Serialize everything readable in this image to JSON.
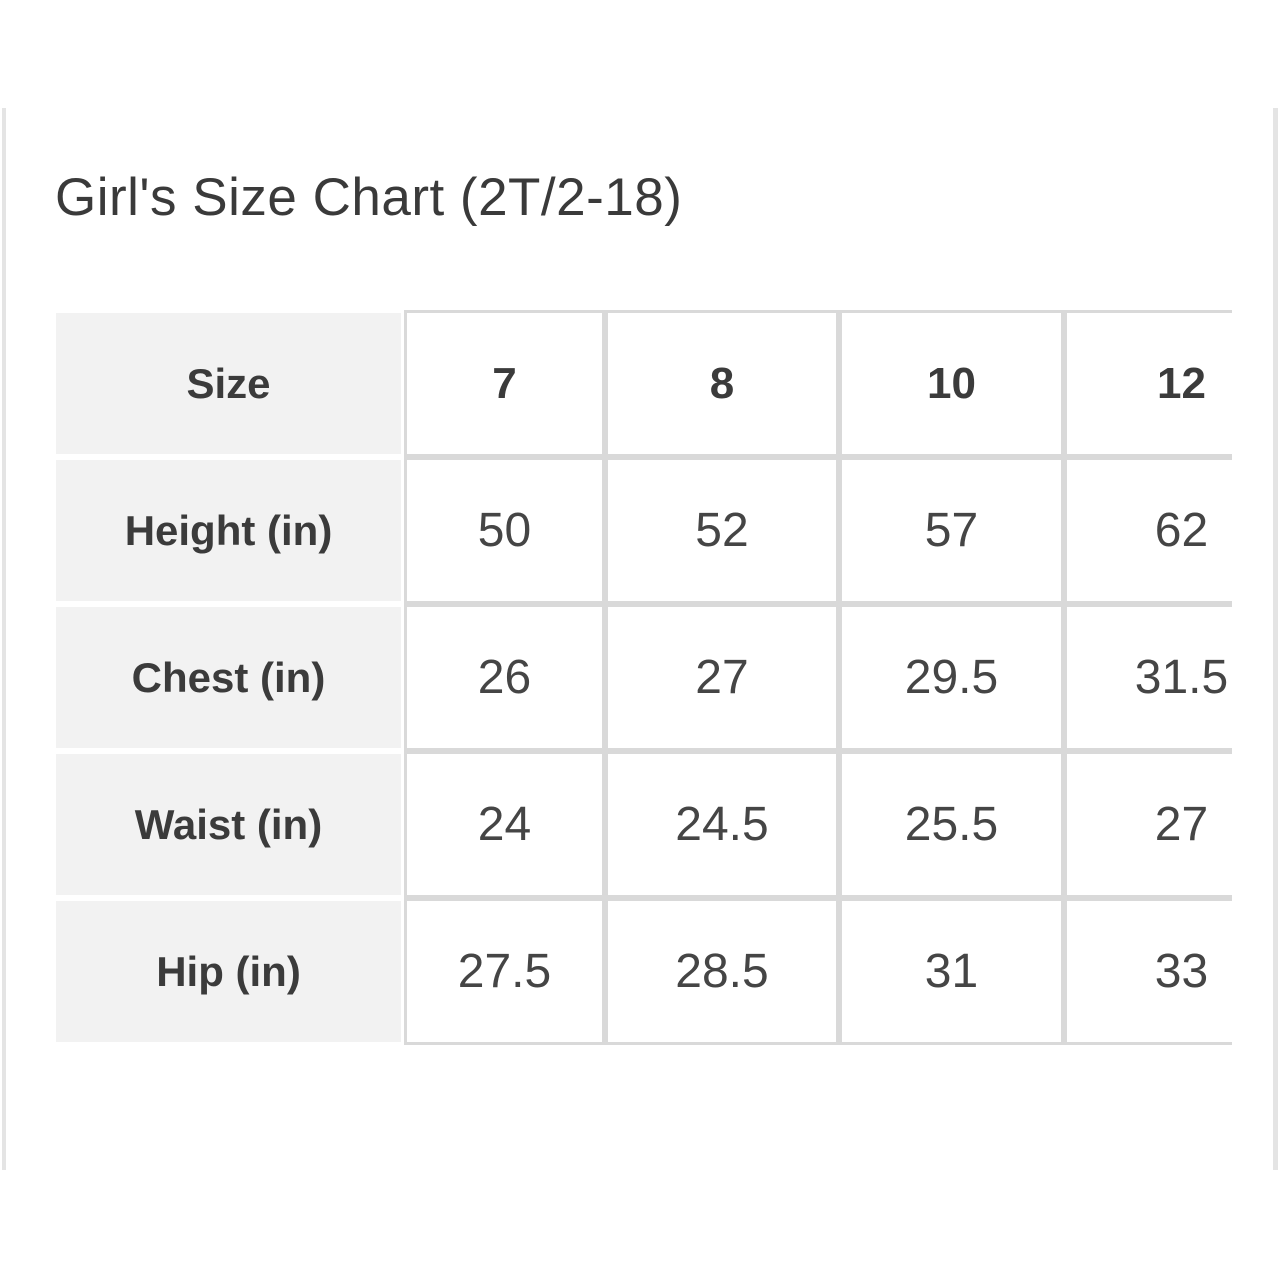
{
  "title": "Girl's Size Chart (2T/2-18)",
  "chart_data": {
    "type": "table",
    "title": "Girl's Size Chart (2T/2-18)",
    "columns": [
      "Size",
      "7",
      "8",
      "10",
      "12"
    ],
    "rows": [
      {
        "label": "Height (in)",
        "values": [
          "50",
          "52",
          "57",
          "62"
        ]
      },
      {
        "label": "Chest (in)",
        "values": [
          "26",
          "27",
          "29.5",
          "31.5"
        ]
      },
      {
        "label": "Waist (in)",
        "values": [
          "24",
          "24.5",
          "25.5",
          "27"
        ]
      },
      {
        "label": "Hip (in)",
        "values": [
          "27.5",
          "28.5",
          "31",
          "33"
        ]
      }
    ],
    "layout_hints": {
      "first_column_is_row_labels": true,
      "rightmost_column_clipped_by_viewport": true
    }
  },
  "colors": {
    "text": "#3b3b3b",
    "label_cell_bg": "#f2f2f2",
    "value_cell_border": "#d9d9d9",
    "card_edge": "#e4e4e4",
    "page_bg": "#ffffff"
  }
}
